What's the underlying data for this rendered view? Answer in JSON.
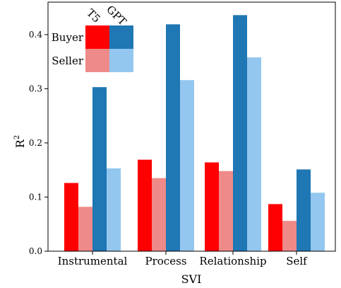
{
  "chart_data": {
    "type": "bar",
    "categories": [
      "Instrumental",
      "Process",
      "Relationship",
      "Self"
    ],
    "series": [
      {
        "model": "T5",
        "role": "Buyer",
        "color": "#ff0000",
        "values": [
          0.126,
          0.169,
          0.164,
          0.087
        ]
      },
      {
        "model": "T5",
        "role": "Seller",
        "color": "#ee8a88",
        "values": [
          0.082,
          0.135,
          0.148,
          0.056
        ]
      },
      {
        "model": "GPT",
        "role": "Buyer",
        "color": "#1f77b4",
        "values": [
          0.303,
          0.419,
          0.436,
          0.151
        ]
      },
      {
        "model": "GPT",
        "role": "Seller",
        "color": "#93c7ef",
        "values": [
          0.153,
          0.316,
          0.358,
          0.108
        ]
      }
    ],
    "xlabel": "SVI",
    "ylabel_main": "R",
    "ylabel_sup": "2",
    "ylim": [
      0,
      0.46
    ],
    "yticks": [
      "0.0",
      "0.1",
      "0.2",
      "0.3",
      "0.4"
    ],
    "legend": {
      "position": "top-left",
      "columns": [
        "T5",
        "GPT"
      ],
      "rows": [
        "Buyer",
        "Seller"
      ]
    },
    "grid": false
  }
}
